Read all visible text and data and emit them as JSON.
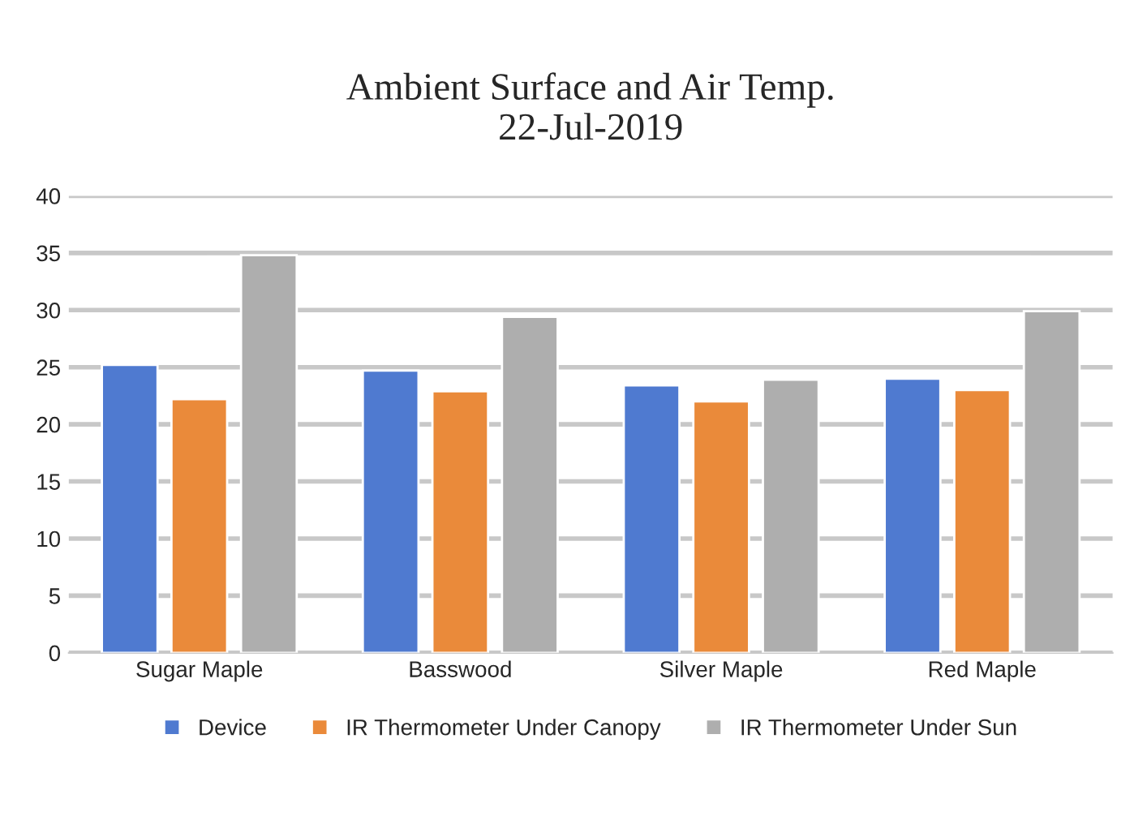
{
  "chart_data": {
    "type": "bar",
    "title": "Ambient Surface and Air Temp.\n22-Jul-2019",
    "categories": [
      "Sugar Maple",
      "Basswood",
      "Silver Maple",
      "Red Maple"
    ],
    "series": [
      {
        "name": "Device",
        "color": "#4f7ad0",
        "values": [
          25.2,
          24.7,
          23.4,
          24.0
        ]
      },
      {
        "name": "IR Thermometer Under Canopy",
        "color": "#ea8a3a",
        "values": [
          22.2,
          22.9,
          22.0,
          23.0
        ]
      },
      {
        "name": "IR Thermometer Under Sun",
        "color": "#aeaeae",
        "values": [
          34.8,
          29.4,
          23.9,
          29.9
        ]
      }
    ],
    "ylim": [
      0,
      40
    ],
    "yticks": [
      0,
      5,
      10,
      15,
      20,
      25,
      30,
      35,
      40
    ],
    "grid": "y",
    "legend": "bottom"
  }
}
